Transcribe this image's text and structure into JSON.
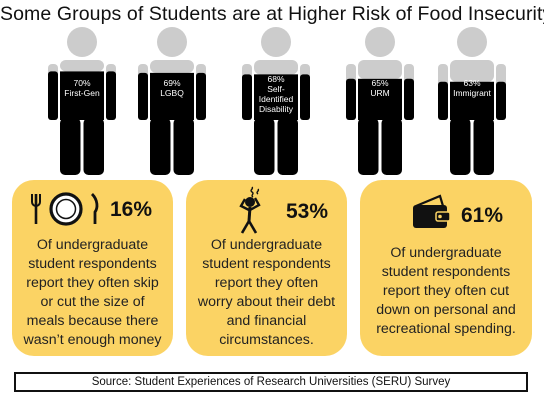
{
  "title": "Some Groups of Students are at Higher Risk of Food Insecurity",
  "chart_data": {
    "type": "bar",
    "categories": [
      "First-Gen",
      "LGBQ",
      "Self-Identified Disability",
      "URM",
      "Immigrant"
    ],
    "values": [
      70,
      69,
      68,
      65,
      63
    ],
    "labels": [
      "70%\nFirst-Gen",
      "69%\nLGBQ",
      "68%\nSelf-\nIdentified\nDisability",
      "65%\nURM",
      "63%\nImmigrant"
    ],
    "ylim": [
      0,
      100
    ],
    "colors": {
      "fill": "#000000",
      "empty": "#cccccc",
      "label": "#ffffff"
    }
  },
  "cards": [
    {
      "icon": "plate-cutlery-icon",
      "percent": "16%",
      "text": "Of undergraduate\nstudent respondents\nreport they often skip\nor cut the size of\nmeals because there\nwasn’t enough money"
    },
    {
      "icon": "worried-figure-icon",
      "percent": "53%",
      "text": "Of undergraduate\nstudent respondents\nreport they often\nworry about their debt\nand financial\ncircumstances."
    },
    {
      "icon": "wallet-icon",
      "percent": "61%",
      "text": "Of undergraduate\nstudent respondents\nreport they often cut\ndown on personal and\nrecreational spending."
    }
  ],
  "source": "Source: Student Experiences of Research Universities (SERU) Survey",
  "colors": {
    "card": "#fbd364",
    "figure_full": "#000000",
    "figure_empty": "#cccccc"
  }
}
